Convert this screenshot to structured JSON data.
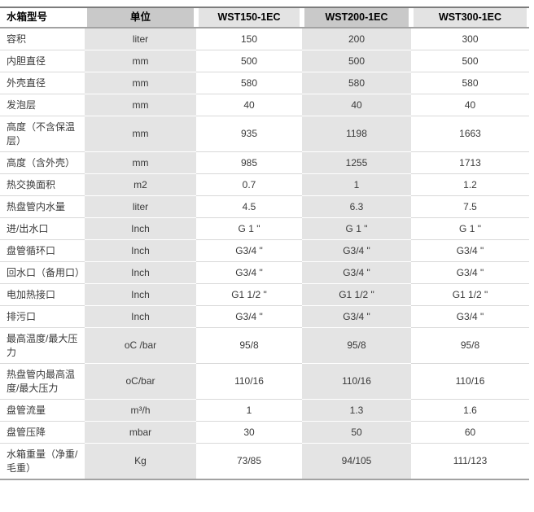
{
  "colors": {
    "header_shade_dark": "#c9c9c9",
    "header_shade_light": "#e3e3e3",
    "column_shade": "#e4e4e4",
    "border_top": "#7c7c7c",
    "border_header": "#a2a2a2",
    "border_bottom": "#a2a2a2",
    "row_divider": "#d9d9d9",
    "text": "#3a3a3a",
    "header_text": "#000000"
  },
  "table": {
    "columns": [
      {
        "label": "水箱型号",
        "shade": "none"
      },
      {
        "label": "单位",
        "shade": "dark"
      },
      {
        "label": "WST150-1EC",
        "shade": "light"
      },
      {
        "label": "WST200-1EC",
        "shade": "dark"
      },
      {
        "label": "WST300-1EC",
        "shade": "light"
      }
    ],
    "rows": [
      {
        "label": "容积",
        "unit": "liter",
        "values": [
          "150",
          "200",
          "300"
        ]
      },
      {
        "label": "内胆直径",
        "unit": "mm",
        "values": [
          "500",
          "500",
          "500"
        ]
      },
      {
        "label": "外壳直径",
        "unit": "mm",
        "values": [
          "580",
          "580",
          "580"
        ]
      },
      {
        "label": "发泡层",
        "unit": "mm",
        "values": [
          "40",
          "40",
          "40"
        ]
      },
      {
        "label": "高度（不含保温层）",
        "unit": "mm",
        "values": [
          "935",
          "1198",
          "1663"
        ]
      },
      {
        "label": "高度（含外壳）",
        "unit": "mm",
        "values": [
          "985",
          "1255",
          "1713"
        ]
      },
      {
        "label": "热交换面积",
        "unit": "m2",
        "values": [
          "0.7",
          "1",
          "1.2"
        ]
      },
      {
        "label": "热盘管内水量",
        "unit": "liter",
        "values": [
          "4.5",
          "6.3",
          "7.5"
        ]
      },
      {
        "label": "进/出水口",
        "unit": "Inch",
        "values": [
          "G 1 \"",
          "G 1 \"",
          "G 1 \""
        ]
      },
      {
        "label": "盘管循环口",
        "unit": "Inch",
        "values": [
          "G3/4 \"",
          "G3/4 \"",
          "G3/4 \""
        ]
      },
      {
        "label": "回水口（备用口）",
        "unit": "Inch",
        "values": [
          "G3/4 \"",
          "G3/4 \"",
          "G3/4 \""
        ]
      },
      {
        "label": "电加热接口",
        "unit": "Inch",
        "values": [
          "G1 1/2 \"",
          "G1 1/2 \"",
          "G1 1/2 \""
        ]
      },
      {
        "label": "排污口",
        "unit": "Inch",
        "values": [
          "G3/4 \"",
          "G3/4 \"",
          "G3/4 \""
        ]
      },
      {
        "label": "最高温度/最大压力",
        "unit": "oC /bar",
        "values": [
          "95/8",
          "95/8",
          "95/8"
        ]
      },
      {
        "label": "热盘管内最高温度/最大压力",
        "unit": "oC/bar",
        "values": [
          "110/16",
          "110/16",
          "110/16"
        ]
      },
      {
        "label": "盘管流量",
        "unit": "m³/h",
        "values": [
          "1",
          "1.3",
          "1.6"
        ]
      },
      {
        "label": "盘管压降",
        "unit": "mbar",
        "values": [
          "30",
          "50",
          "60"
        ]
      },
      {
        "label": "水箱重量（净重/毛重）",
        "unit": "Kg",
        "values": [
          "73/85",
          "94/105",
          "111/123"
        ]
      }
    ]
  }
}
